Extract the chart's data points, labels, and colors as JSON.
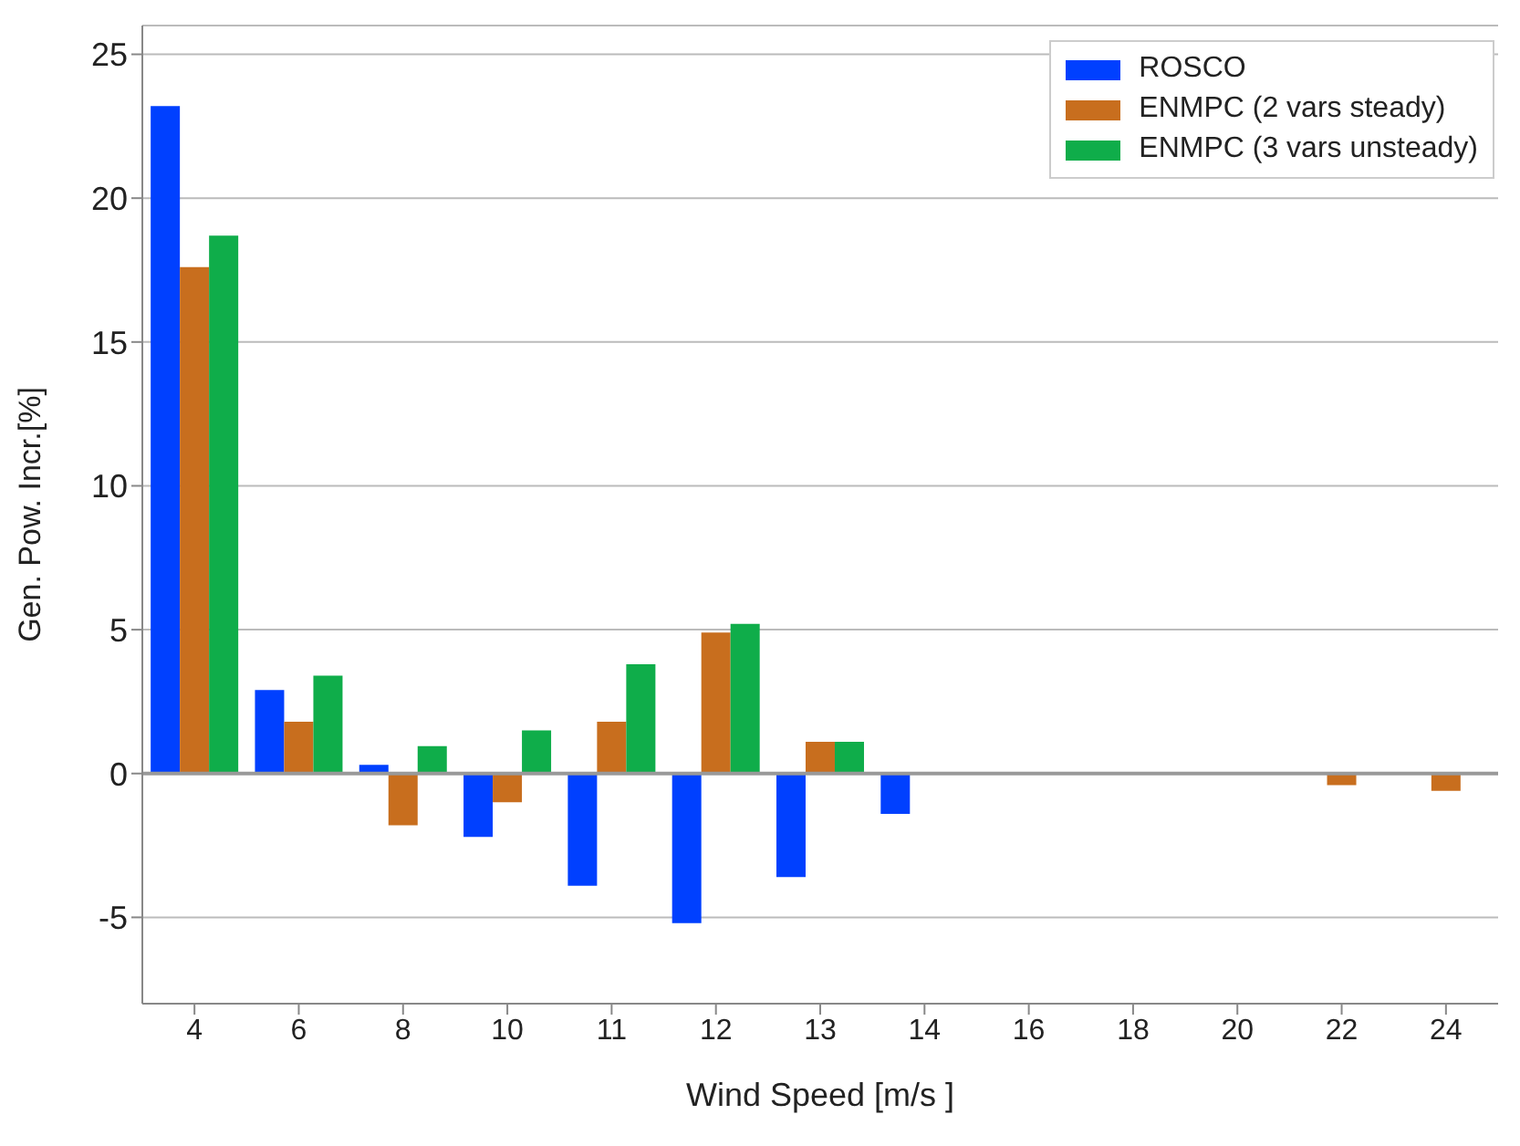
{
  "chart_data": {
    "type": "bar",
    "xlabel": "Wind Speed [m/s ]",
    "ylabel": "Gen. Pow. Incr.[%]",
    "categories": [
      "4",
      "6",
      "8",
      "10",
      "11",
      "12",
      "13",
      "14",
      "16",
      "18",
      "20",
      "22",
      "24"
    ],
    "series": [
      {
        "name": "ROSCO",
        "color": "#0040ff",
        "values": [
          23.2,
          2.9,
          0.3,
          -2.2,
          -3.9,
          -5.2,
          -3.6,
          -1.4,
          null,
          null,
          null,
          null,
          null
        ]
      },
      {
        "name": "ENMPC (2 vars steady)",
        "color": "#c86e1e",
        "values": [
          17.6,
          1.8,
          -1.8,
          -1.0,
          1.8,
          4.9,
          1.1,
          null,
          null,
          null,
          null,
          -0.4,
          -0.6
        ]
      },
      {
        "name": "ENMPC (3 vars unsteady)",
        "color": "#0fad4a",
        "values": [
          18.7,
          3.4,
          0.95,
          1.5,
          3.8,
          5.2,
          1.1,
          null,
          null,
          null,
          null,
          null,
          null
        ]
      }
    ],
    "ylim": [
      -8,
      26
    ],
    "yticks": [
      -5,
      0,
      5,
      10,
      15,
      20,
      25
    ],
    "grid": "y",
    "legend": "top right"
  }
}
